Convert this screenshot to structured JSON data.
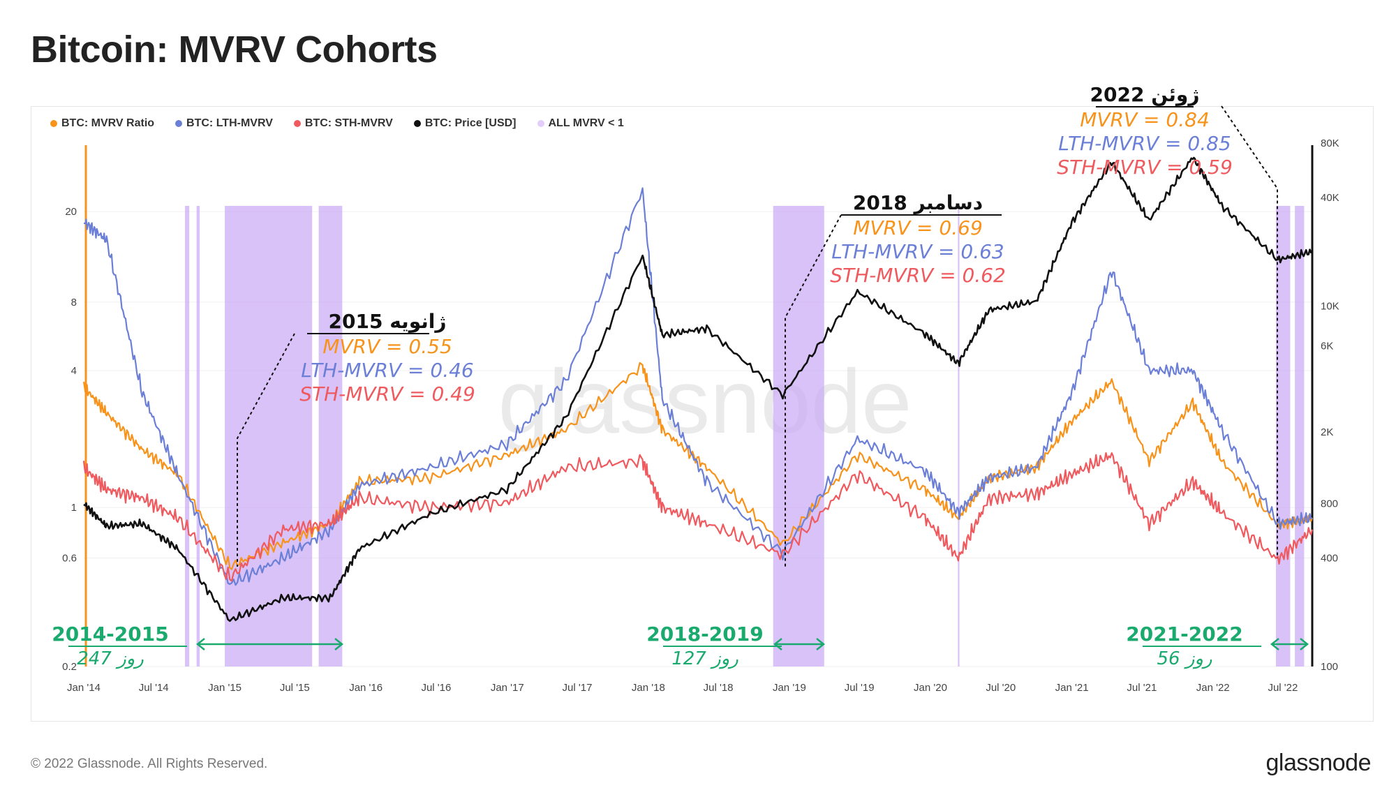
{
  "title": "Bitcoin: MVRV Cohorts",
  "footer": {
    "copyright": "© 2022 Glassnode. All Rights Reserved.",
    "logo_text": "glassnode"
  },
  "watermark": "glassnode",
  "colors": {
    "mvrv": "#f7931a",
    "lth": "#6b7fd7",
    "sth": "#ef5a5f",
    "price": "#111111",
    "shade": "#c9a8f5",
    "green": "#1aaa6e"
  },
  "chart_data": {
    "type": "line",
    "legend": [
      {
        "name": "BTC: MVRV Ratio",
        "color": "#f7931a"
      },
      {
        "name": "BTC: LTH-MVRV",
        "color": "#6b7fd7"
      },
      {
        "name": "BTC: STH-MVRV",
        "color": "#ef5a5f"
      },
      {
        "name": "BTC: Price [USD]",
        "color": "#111111"
      },
      {
        "name": "ALL MVRV < 1",
        "color": "#e2cdfb"
      }
    ],
    "x_ticks": [
      "Jan '14",
      "Jul '14",
      "Jan '15",
      "Jul '15",
      "Jan '16",
      "Jul '16",
      "Jan '17",
      "Jul '17",
      "Jan '18",
      "Jul '18",
      "Jan '19",
      "Jul '19",
      "Jan '20",
      "Jul '20",
      "Jan '21",
      "Jul '21",
      "Jan '22",
      "Jul '22"
    ],
    "y_left_ticks": [
      "20",
      "8",
      "4",
      "1",
      "0.6",
      "0.2"
    ],
    "y_left_log": true,
    "y_left_range": [
      0.2,
      40
    ],
    "y_right_ticks": [
      "80K",
      "40K",
      "10K",
      "6K",
      "2K",
      "800",
      "400",
      "100"
    ],
    "y_right_log": true,
    "y_right_range": [
      100,
      80000
    ],
    "x_range": [
      "2014-01-01",
      "2022-09-15"
    ],
    "series": [
      {
        "name": "BTC: MVRV Ratio",
        "axis": "left",
        "x": [
          "2014-01-01",
          "2014-03-01",
          "2014-06-01",
          "2014-09-01",
          "2015-01-14",
          "2015-06-01",
          "2015-10-01",
          "2015-12-15",
          "2016-06-15",
          "2016-12-31",
          "2017-06-01",
          "2017-12-17",
          "2018-02-06",
          "2018-06-01",
          "2018-12-15",
          "2019-06-26",
          "2019-12-18",
          "2020-03-13",
          "2020-06-01",
          "2020-10-01",
          "2021-01-01",
          "2021-04-14",
          "2021-07-20",
          "2021-11-10",
          "2022-01-24",
          "2022-06-18",
          "2022-09-15"
        ],
        "values": [
          3.4,
          2.6,
          1.8,
          1.4,
          0.55,
          0.7,
          0.85,
          1.3,
          1.35,
          1.7,
          2.2,
          4.2,
          2.2,
          1.5,
          0.69,
          1.7,
          1.2,
          0.9,
          1.35,
          1.5,
          2.4,
          3.6,
          1.6,
          2.9,
          1.6,
          0.84,
          0.9
        ]
      },
      {
        "name": "BTC: LTH-MVRV",
        "axis": "left",
        "x": [
          "2014-01-01",
          "2014-03-01",
          "2014-06-01",
          "2014-09-01",
          "2015-01-14",
          "2015-06-01",
          "2015-10-01",
          "2015-12-15",
          "2016-06-15",
          "2016-12-31",
          "2017-06-01",
          "2017-12-17",
          "2018-02-06",
          "2018-06-01",
          "2018-12-15",
          "2019-06-26",
          "2019-12-18",
          "2020-03-13",
          "2020-06-01",
          "2020-10-01",
          "2021-01-01",
          "2021-04-14",
          "2021-07-20",
          "2021-11-10",
          "2022-01-24",
          "2022-06-18",
          "2022-09-15"
        ],
        "values": [
          18,
          15,
          3.2,
          1.4,
          0.46,
          0.6,
          0.8,
          1.25,
          1.5,
          1.9,
          3.6,
          25,
          3.0,
          1.3,
          0.63,
          2.0,
          1.45,
          0.95,
          1.35,
          1.5,
          3.2,
          11,
          4.0,
          4.0,
          2.2,
          0.85,
          0.9
        ]
      },
      {
        "name": "BTC: STH-MVRV",
        "axis": "left",
        "x": [
          "2014-01-01",
          "2014-03-01",
          "2014-06-01",
          "2014-09-01",
          "2015-01-14",
          "2015-06-01",
          "2015-10-01",
          "2015-12-15",
          "2016-06-15",
          "2016-12-31",
          "2017-06-01",
          "2017-12-17",
          "2018-02-06",
          "2018-06-01",
          "2018-12-15",
          "2019-06-26",
          "2019-12-18",
          "2020-03-13",
          "2020-06-01",
          "2020-10-01",
          "2021-01-01",
          "2021-04-14",
          "2021-07-20",
          "2021-11-10",
          "2022-01-24",
          "2022-06-18",
          "2022-09-15"
        ],
        "values": [
          1.5,
          1.2,
          1.1,
          0.9,
          0.49,
          0.8,
          0.85,
          1.1,
          1.0,
          1.05,
          1.5,
          1.6,
          1.0,
          0.85,
          0.62,
          1.4,
          0.9,
          0.6,
          1.1,
          1.15,
          1.4,
          1.7,
          0.85,
          1.3,
          0.95,
          0.59,
          0.8
        ]
      },
      {
        "name": "BTC: Price [USD]",
        "axis": "right",
        "x": [
          "2014-01-01",
          "2014-03-01",
          "2014-06-01",
          "2014-09-01",
          "2015-01-14",
          "2015-06-01",
          "2015-10-01",
          "2015-12-15",
          "2016-06-15",
          "2016-12-31",
          "2017-06-01",
          "2017-12-17",
          "2018-02-06",
          "2018-06-01",
          "2018-12-15",
          "2019-06-26",
          "2019-12-18",
          "2020-03-13",
          "2020-06-01",
          "2020-10-01",
          "2021-01-01",
          "2021-04-14",
          "2021-07-20",
          "2021-11-10",
          "2022-01-24",
          "2022-06-18",
          "2022-09-15"
        ],
        "values": [
          800,
          600,
          620,
          450,
          180,
          240,
          240,
          450,
          700,
          960,
          2400,
          19000,
          6900,
          7500,
          3200,
          12000,
          7000,
          4800,
          9500,
          10600,
          29000,
          63000,
          29800,
          67000,
          36000,
          18000,
          20000
        ]
      }
    ],
    "shaded_regions": [
      [
        "2014-09-20",
        "2014-10-01"
      ],
      [
        "2014-10-20",
        "2014-10-28"
      ],
      [
        "2015-01-01",
        "2015-08-15"
      ],
      [
        "2015-09-01",
        "2015-11-01"
      ],
      [
        "2018-11-20",
        "2019-04-01"
      ],
      [
        "2020-03-12",
        "2020-03-16"
      ],
      [
        "2022-06-13",
        "2022-07-20"
      ],
      [
        "2022-08-01",
        "2022-08-25"
      ]
    ],
    "annotations": [
      {
        "date_label": "ژانویه 2015",
        "mvrv": "MVRV = 0.55",
        "lth": "LTH-MVRV = 0.46",
        "sth": "STH-MVRV = 0.49"
      },
      {
        "date_label": "دسامبر 2018",
        "mvrv": "MVRV = 0.69",
        "lth": "LTH-MVRV = 0.63",
        "sth": "STH-MVRV = 0.62"
      },
      {
        "date_label": "ژوئن 2022",
        "mvrv": "MVRV = 0.84",
        "lth": "LTH-MVRV = 0.85",
        "sth": "STH-MVRV = 0.59"
      }
    ],
    "periods": [
      {
        "label": "2014-2015",
        "days": "247 روز"
      },
      {
        "label": "2018-2019",
        "days": "127 روز"
      },
      {
        "label": "2021-2022",
        "days": "56 روز"
      }
    ]
  }
}
